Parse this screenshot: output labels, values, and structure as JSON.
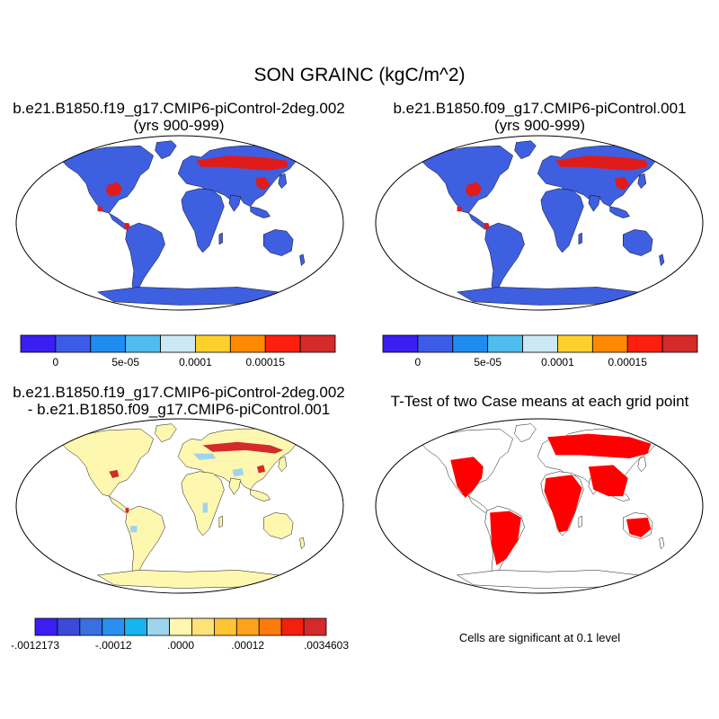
{
  "title": "SON GRAINC (kgC/m^2)",
  "panels": [
    {
      "title_line1": "b.e21.B1850.f19_g17.CMIP6-piControl-2deg.002",
      "title_line2": "(yrs 900-999)"
    },
    {
      "title_line1": "b.e21.B1850.f09_g17.CMIP6-piControl.001",
      "title_line2": "(yrs 900-999)"
    },
    {
      "title_line1": "b.e21.B1850.f19_g17.CMIP6-piControl-2deg.002",
      "title_line2": "- b.e21.B1850.f09_g17.CMIP6-piControl.001"
    },
    {
      "title_line1": "T-Test of two Case means at each grid point",
      "note": "Cells are significant at 0.1 level"
    }
  ],
  "colorbar_case": {
    "colors": [
      "#3b1ef2",
      "#3c5ce8",
      "#1e8cf0",
      "#50bdf0",
      "#cce8f5",
      "#fdd02b",
      "#ff8a00",
      "#ff1f0f",
      "#d42a2a"
    ],
    "tick_labels": [
      "0",
      "5e-05",
      "0.0001",
      "0.00015"
    ]
  },
  "colorbar_diff": {
    "colors": [
      "#3b1ef2",
      "#3c4ad8",
      "#3a6fe0",
      "#2a90f0",
      "#16b4f0",
      "#9fd4ee",
      "#fdf7b0",
      "#fde27a",
      "#fdc536",
      "#fda21a",
      "#fe7a0c",
      "#f3200e",
      "#d42a2a"
    ],
    "tick_labels": [
      "-.0012173",
      "-.00012",
      ".0000",
      ".00012",
      ".0034603"
    ]
  }
}
